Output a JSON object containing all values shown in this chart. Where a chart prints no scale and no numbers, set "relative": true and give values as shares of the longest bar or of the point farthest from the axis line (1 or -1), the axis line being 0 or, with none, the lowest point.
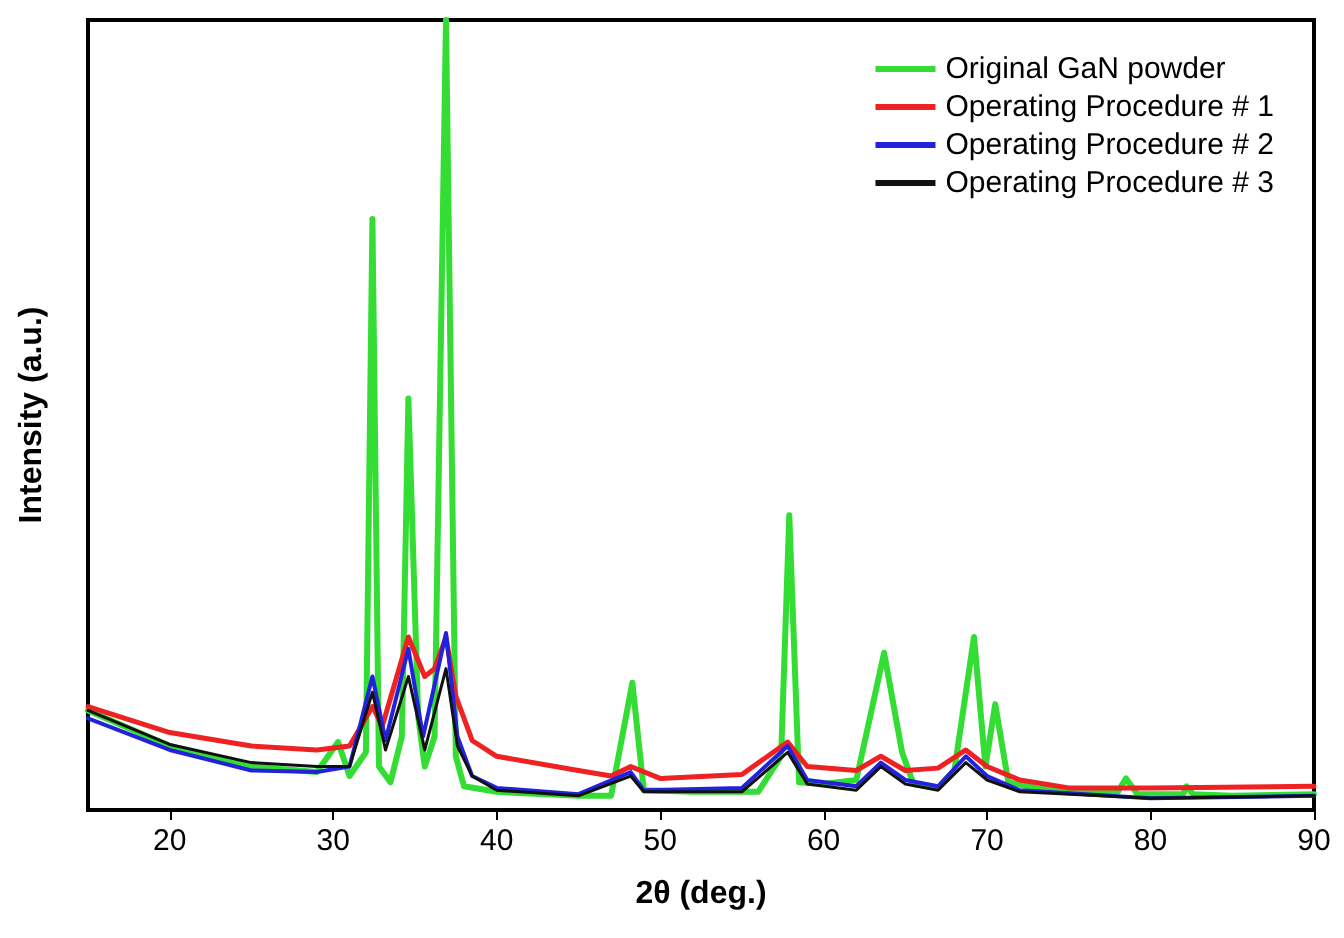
{
  "chart_data": {
    "type": "line",
    "xlabel": "2θ (deg.)",
    "ylabel": "Intensity (a.u.)",
    "relative": true,
    "xlim": [
      15,
      90
    ],
    "xticks": [
      20,
      30,
      40,
      50,
      60,
      70,
      80,
      90
    ],
    "legend": "top right",
    "grid": false,
    "marker": "none",
    "line_style": "solid",
    "series": [
      {
        "name": "Original GaN powder",
        "color": "#33dd33",
        "x": [
          15,
          20,
          25,
          29,
          30.3,
          31,
          32,
          32.4,
          32.8,
          33.5,
          34.2,
          34.6,
          35.2,
          35.6,
          36.2,
          36.9,
          37.5,
          38,
          40,
          45,
          47,
          48.3,
          49,
          52,
          56,
          57.4,
          57.9,
          58.5,
          60,
          62,
          63.7,
          64.8,
          65.5,
          67,
          68,
          69.2,
          69.9,
          70.5,
          71.3,
          73,
          75,
          78,
          78.5,
          79.2,
          82,
          82.2,
          82.6,
          85,
          90
        ],
        "values": [
          0.126,
          0.081,
          0.055,
          0.048,
          0.086,
          0.043,
          0.073,
          0.748,
          0.055,
          0.035,
          0.093,
          0.521,
          0.118,
          0.055,
          0.093,
          1.0,
          0.068,
          0.03,
          0.023,
          0.018,
          0.018,
          0.161,
          0.025,
          0.023,
          0.023,
          0.068,
          0.373,
          0.035,
          0.033,
          0.038,
          0.199,
          0.073,
          0.033,
          0.028,
          0.05,
          0.219,
          0.055,
          0.134,
          0.035,
          0.028,
          0.023,
          0.023,
          0.04,
          0.02,
          0.02,
          0.03,
          0.02,
          0.018,
          0.02
        ]
      },
      {
        "name": "Operating Procedure # 1",
        "color": "#ee2222",
        "x": [
          15,
          20,
          25,
          29,
          31,
          32.4,
          33,
          34.6,
          35.6,
          36.2,
          36.9,
          37.5,
          38.5,
          40,
          45,
          47,
          48.2,
          50,
          55,
          57.8,
          59,
          62,
          63.5,
          65,
          67,
          68.7,
          70,
          72,
          75,
          80,
          90
        ],
        "values": [
          0.131,
          0.098,
          0.081,
          0.076,
          0.081,
          0.131,
          0.106,
          0.219,
          0.169,
          0.179,
          0.219,
          0.144,
          0.088,
          0.068,
          0.05,
          0.043,
          0.055,
          0.04,
          0.045,
          0.086,
          0.055,
          0.05,
          0.068,
          0.05,
          0.053,
          0.076,
          0.055,
          0.038,
          0.028,
          0.028,
          0.03
        ]
      },
      {
        "name": "Operating Procedure # 2",
        "color": "#2222dd",
        "x": [
          15,
          20,
          25,
          29,
          31,
          32.4,
          33.2,
          34.6,
          35.5,
          36.9,
          37.6,
          38.5,
          40,
          45,
          48.2,
          49,
          55,
          57.8,
          59,
          62,
          63.5,
          65,
          67,
          68.7,
          70,
          72,
          80,
          90
        ],
        "values": [
          0.116,
          0.076,
          0.05,
          0.048,
          0.055,
          0.169,
          0.088,
          0.204,
          0.093,
          0.224,
          0.093,
          0.043,
          0.028,
          0.02,
          0.048,
          0.025,
          0.028,
          0.081,
          0.038,
          0.03,
          0.06,
          0.038,
          0.03,
          0.068,
          0.043,
          0.025,
          0.015,
          0.018
        ]
      },
      {
        "name": "Operating Procedure # 3",
        "color": "#111111",
        "x": [
          15,
          20,
          25,
          29,
          31,
          32.4,
          33.2,
          34.6,
          35.6,
          36.9,
          37.6,
          38.5,
          40,
          45,
          48.2,
          49,
          55,
          57.8,
          59,
          62,
          63.5,
          65,
          67,
          68.7,
          70,
          72,
          80,
          90
        ],
        "values": [
          0.126,
          0.083,
          0.06,
          0.055,
          0.055,
          0.149,
          0.076,
          0.169,
          0.076,
          0.179,
          0.081,
          0.043,
          0.025,
          0.018,
          0.043,
          0.023,
          0.023,
          0.073,
          0.033,
          0.025,
          0.055,
          0.033,
          0.025,
          0.06,
          0.038,
          0.023,
          0.015,
          0.018
        ]
      }
    ]
  }
}
